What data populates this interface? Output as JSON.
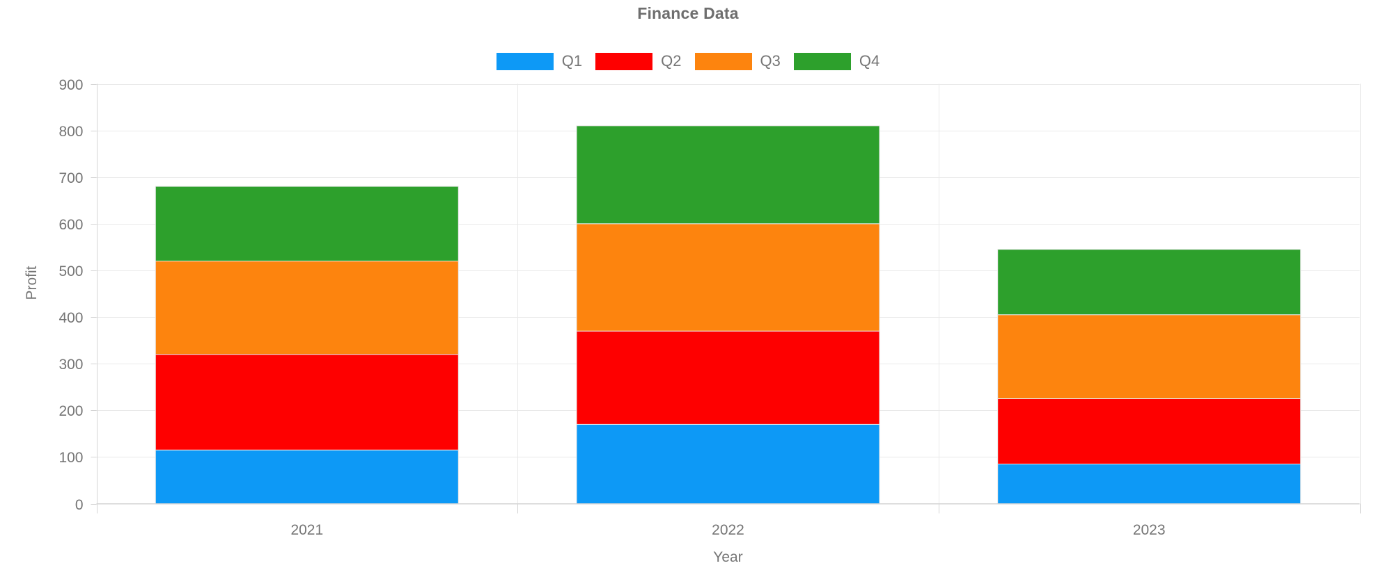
{
  "chart_data": {
    "type": "bar",
    "stacked": true,
    "title": "Finance Data",
    "xlabel": "Year",
    "ylabel": "Profit",
    "categories": [
      "2021",
      "2022",
      "2023"
    ],
    "series": [
      {
        "name": "Q1",
        "color": "#0d99f6",
        "values": [
          115,
          170,
          85
        ]
      },
      {
        "name": "Q2",
        "color": "#fe0000",
        "values": [
          205,
          200,
          140
        ]
      },
      {
        "name": "Q3",
        "color": "#fd840e",
        "values": [
          200,
          230,
          180
        ]
      },
      {
        "name": "Q4",
        "color": "#2da02c",
        "values": [
          160,
          210,
          140
        ]
      }
    ],
    "ylim": [
      0,
      900
    ],
    "yticks": [
      0,
      100,
      200,
      300,
      400,
      500,
      600,
      700,
      800,
      900
    ],
    "grid": true,
    "legend_position": "top"
  },
  "colors": {
    "title_text": "#6e6e6e",
    "axis_text": "#757575",
    "gridline": "#e9e9e9",
    "axis_line": "#d4d4d4",
    "segment_stroke": "#e8e8e8",
    "background": "#ffffff"
  }
}
